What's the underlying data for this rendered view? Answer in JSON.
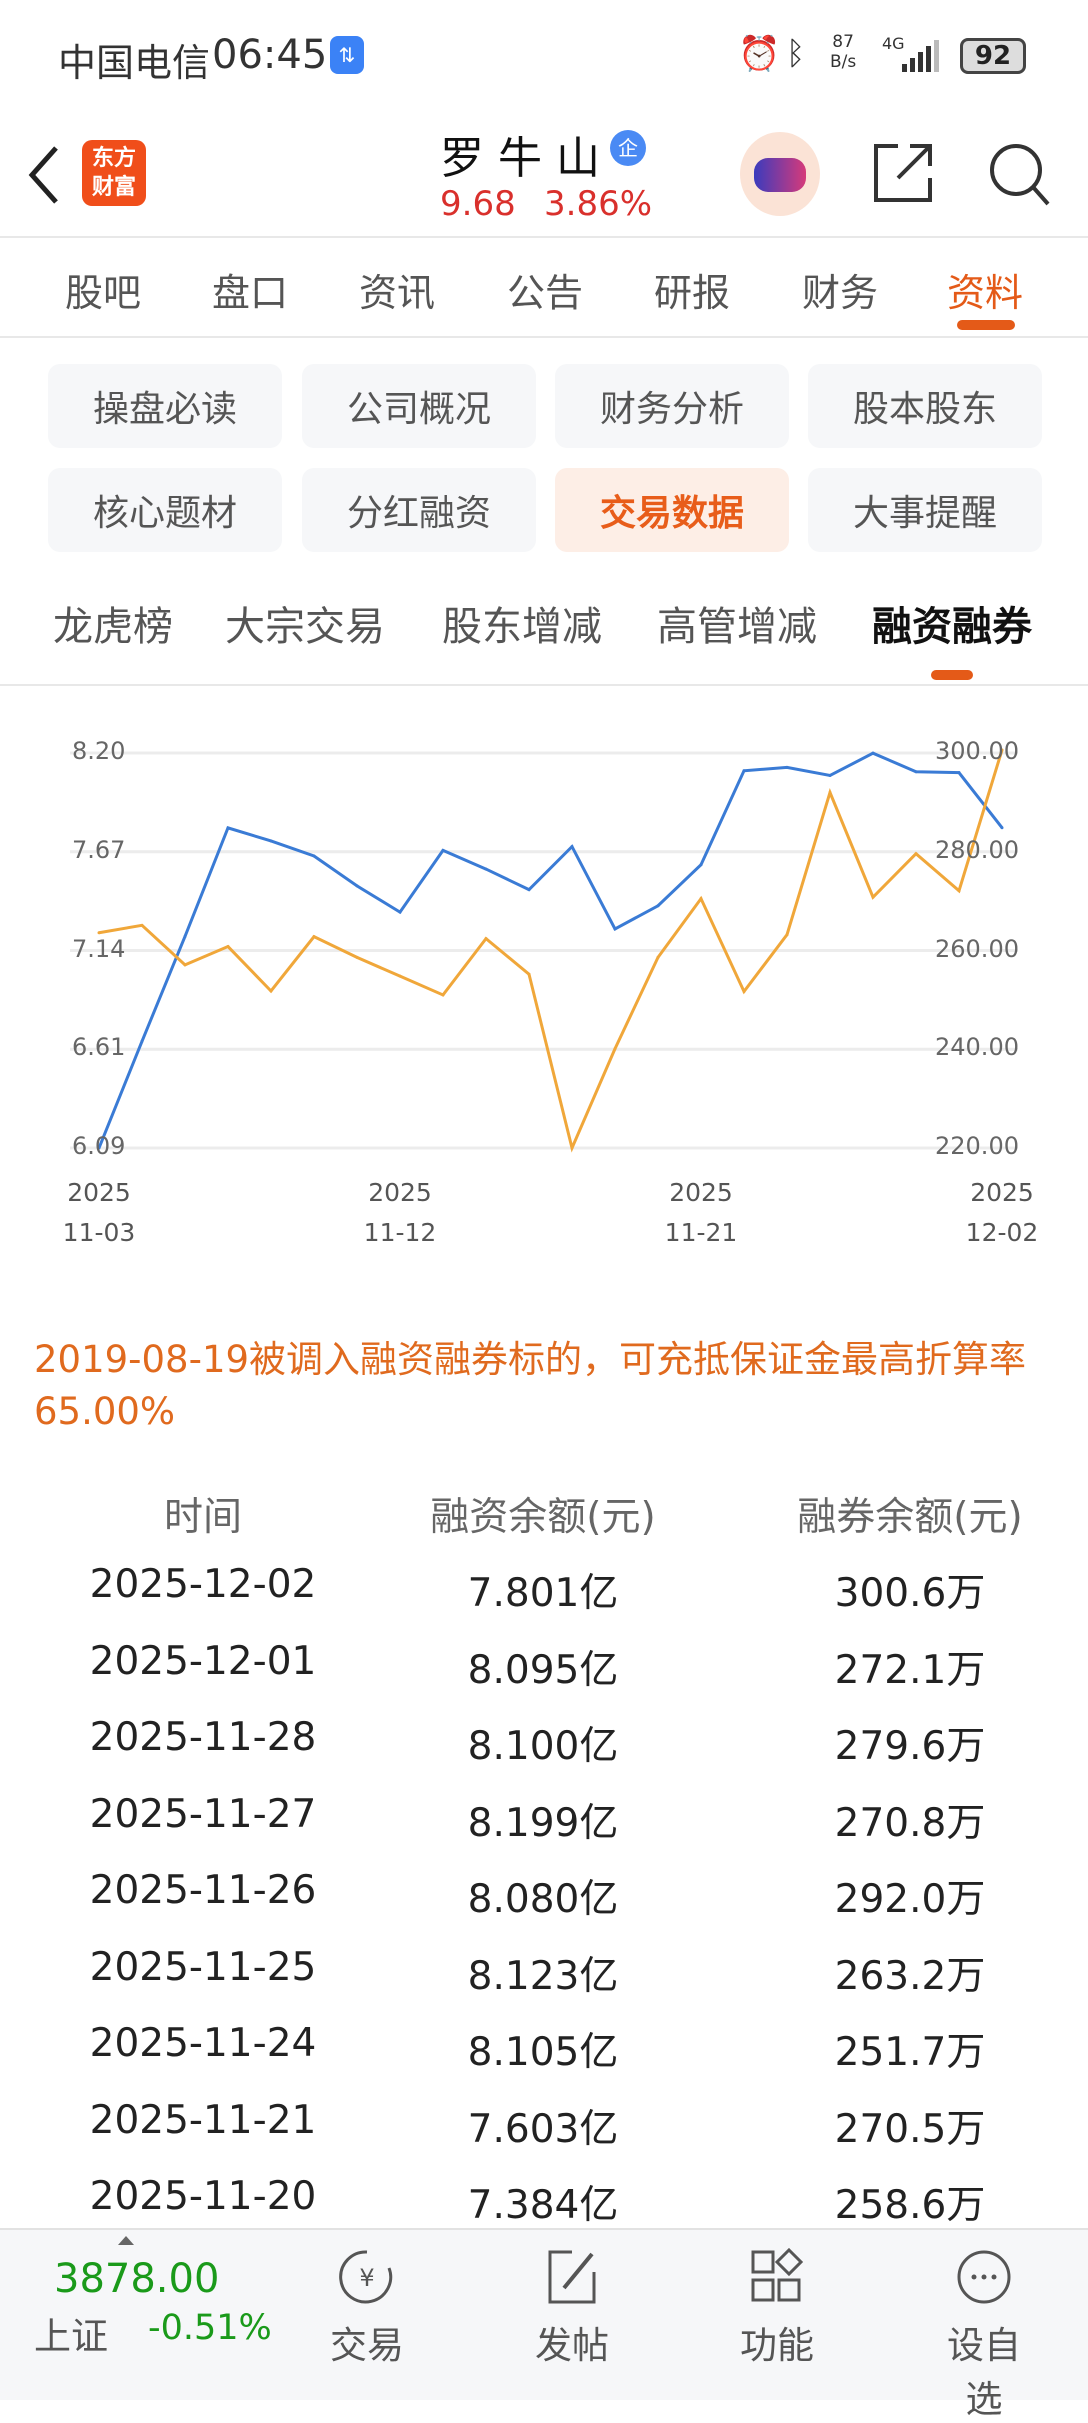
{
  "status_bar": {
    "carrier": "中国电信",
    "time": "06:45",
    "net_speed_value": "87",
    "net_speed_unit": "B/s",
    "network": "4G",
    "battery": "92"
  },
  "header": {
    "logo_line1": "东方",
    "logo_line2": "财富",
    "stock_name": "罗牛山",
    "badge": "企",
    "price": "9.68",
    "change_pct": "3.86%"
  },
  "tabs": [
    {
      "label": "股吧"
    },
    {
      "label": "盘口"
    },
    {
      "label": "资讯"
    },
    {
      "label": "公告"
    },
    {
      "label": "研报"
    },
    {
      "label": "财务"
    },
    {
      "label": "资料",
      "active": true
    }
  ],
  "grid_buttons": [
    {
      "label": "操盘必读"
    },
    {
      "label": "公司概况"
    },
    {
      "label": "财务分析"
    },
    {
      "label": "股本股东"
    },
    {
      "label": "核心题材"
    },
    {
      "label": "分红融资"
    },
    {
      "label": "交易数据",
      "active": true
    },
    {
      "label": "大事提醒"
    }
  ],
  "sub_tabs": [
    {
      "label": "龙虎榜"
    },
    {
      "label": "大宗交易"
    },
    {
      "label": "股东增减"
    },
    {
      "label": "高管增减"
    },
    {
      "label": "融资融券",
      "active": true
    }
  ],
  "chart_data": {
    "type": "line",
    "x": [
      "2025-11-03",
      "2025-11-04",
      "2025-11-05",
      "2025-11-06",
      "2025-11-07",
      "2025-11-10",
      "2025-11-11",
      "2025-11-12",
      "2025-11-13",
      "2025-11-14",
      "2025-11-17",
      "2025-11-18",
      "2025-11-19",
      "2025-11-20",
      "2025-11-21",
      "2025-11-24",
      "2025-11-25",
      "2025-11-26",
      "2025-11-27",
      "2025-11-28",
      "2025-12-01",
      "2025-12-02"
    ],
    "x_tick_labels": [
      {
        "year": "2025",
        "date": "11-03"
      },
      {
        "year": "2025",
        "date": "11-12"
      },
      {
        "year": "2025",
        "date": "11-21"
      },
      {
        "year": "2025",
        "date": "12-02"
      }
    ],
    "left_axis": {
      "ticks": [
        "8.20",
        "7.67",
        "7.14",
        "6.61",
        "6.09"
      ],
      "range": [
        6.09,
        8.2
      ],
      "unit": "亿"
    },
    "right_axis": {
      "ticks": [
        "300.00",
        "280.00",
        "260.00",
        "240.00",
        "220.00"
      ],
      "range": [
        220,
        300
      ],
      "unit": "万"
    },
    "series": [
      {
        "name": "融资余额",
        "axis": "left",
        "color": "#3a7bd5",
        "values": [
          6.09,
          6.66,
          7.22,
          7.8,
          7.73,
          7.65,
          7.49,
          7.35,
          7.68,
          7.58,
          7.47,
          7.7,
          7.26,
          7.384,
          7.603,
          8.105,
          8.123,
          8.08,
          8.199,
          8.1,
          8.095,
          7.801
        ]
      },
      {
        "name": "融券余额",
        "axis": "right",
        "color": "#f0a73a",
        "values": [
          263.6,
          265.1,
          257.1,
          260.8,
          251.8,
          262.8,
          258.6,
          254.8,
          251.0,
          262.4,
          255.2,
          220.0,
          240.1,
          258.6,
          270.5,
          251.7,
          263.2,
          292.0,
          270.8,
          279.6,
          272.1,
          300.6
        ]
      }
    ],
    "grid": true
  },
  "note": "2019-08-19被调入融资融券标的，可充抵保证金最高折算率65.00%",
  "table": {
    "headers": [
      "时间",
      "融资余额(元)",
      "融券余额(元)"
    ],
    "rows": [
      [
        "2025-12-02",
        "7.801亿",
        "300.6万"
      ],
      [
        "2025-12-01",
        "8.095亿",
        "272.1万"
      ],
      [
        "2025-11-28",
        "8.100亿",
        "279.6万"
      ],
      [
        "2025-11-27",
        "8.199亿",
        "270.8万"
      ],
      [
        "2025-11-26",
        "8.080亿",
        "292.0万"
      ],
      [
        "2025-11-25",
        "8.123亿",
        "263.2万"
      ],
      [
        "2025-11-24",
        "8.105亿",
        "251.7万"
      ],
      [
        "2025-11-21",
        "7.603亿",
        "270.5万"
      ],
      [
        "2025-11-20",
        "7.384亿",
        "258.6万"
      ]
    ]
  },
  "bottom_bar": {
    "index_value": "3878.00",
    "index_name": "上证",
    "index_change": "-0.51%",
    "items": [
      {
        "label": "交易",
        "icon": "yuan-cycle-icon"
      },
      {
        "label": "发帖",
        "icon": "edit-icon"
      },
      {
        "label": "功能",
        "icon": "grid-icon"
      },
      {
        "label": "设自选",
        "icon": "more-icon"
      }
    ]
  },
  "colors": {
    "accent": "#e45a18",
    "up": "#d9302c",
    "down": "#1a9a1a"
  }
}
